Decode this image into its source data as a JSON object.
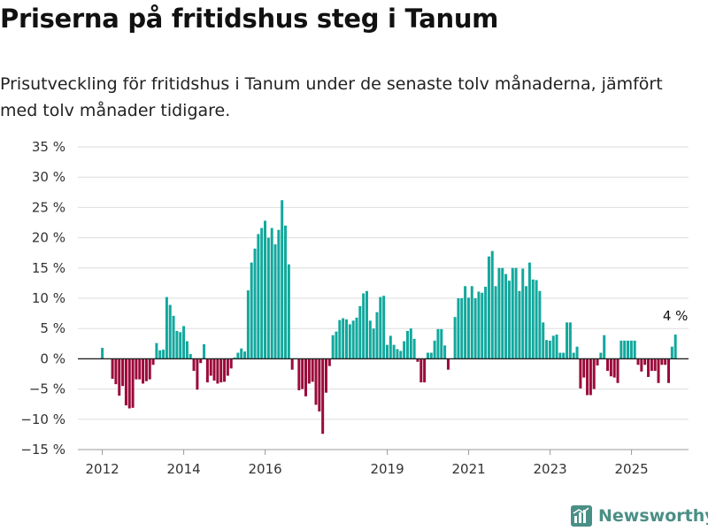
{
  "title": "Priserna på fritidshus steg i Tanum",
  "subtitle": "Prisutveckling för fritidshus i Tanum under de senaste tolv månaderna, jämfört med tolv månader tidigare.",
  "brand": {
    "name": "Newsworthy",
    "color": "#4a8f86",
    "icon": "bar-chart-logo-icon"
  },
  "colors": {
    "positive": "#12a89d",
    "negative": "#9b0a3a",
    "grid": "#dddddd",
    "zero_line": "#222222"
  },
  "chart_data": {
    "type": "bar",
    "title": "Priserna på fritidshus steg i Tanum",
    "ylim": [
      -15,
      35
    ],
    "yticks": [
      -15,
      -10,
      -5,
      0,
      5,
      10,
      15,
      20,
      25,
      30,
      35
    ],
    "ytick_labels": [
      "−15 %",
      "−10 %",
      "−5 %",
      "0 %",
      "5 %",
      "10 %",
      "15 %",
      "20 %",
      "25 %",
      "30 %",
      "35 %"
    ],
    "x_start": 2012.0,
    "x_step": 0.0833,
    "xlim": [
      2011.4,
      2026.4
    ],
    "xticks": [
      2012,
      2014,
      2016,
      2019,
      2021,
      2023,
      2025
    ],
    "xtick_labels": [
      "2012",
      "2014",
      "2016",
      "2019",
      "2021",
      "2023",
      "2025"
    ],
    "grid": "horizontal",
    "annotation": {
      "text": "4 %",
      "value": 4
    },
    "values": [
      1.8,
      0,
      0,
      -3.3,
      -4.2,
      -6.1,
      -4.5,
      -7.7,
      -8.2,
      -8.1,
      -3.4,
      -3.4,
      -4.1,
      -3.7,
      -3.4,
      -1.0,
      2.6,
      1.4,
      1.5,
      10.2,
      8.9,
      7.1,
      4.6,
      4.4,
      5.4,
      2.9,
      0.8,
      -2.0,
      -5.1,
      -0.7,
      2.4,
      -3.9,
      -2.8,
      -3.6,
      -4.1,
      -3.9,
      -3.8,
      -2.8,
      -1.6,
      0.2,
      1.0,
      1.7,
      1.2,
      11.3,
      15.9,
      18.2,
      20.6,
      21.6,
      22.8,
      20.0,
      21.6,
      18.9,
      21.3,
      26.2,
      22.0,
      15.6,
      -1.8,
      0,
      -5.2,
      -5.0,
      -6.2,
      -4.1,
      -3.8,
      -7.6,
      -8.7,
      -12.4,
      -5.6,
      -1.2,
      3.9,
      4.5,
      6.4,
      6.7,
      6.5,
      5.7,
      6.3,
      6.8,
      8.7,
      10.8,
      11.2,
      6.3,
      5.0,
      7.7,
      10.2,
      10.4,
      2.3,
      3.8,
      2.3,
      1.6,
      1.3,
      2.9,
      4.6,
      5.0,
      3.3,
      -0.5,
      -3.9,
      -3.9,
      1.0,
      1.0,
      3.0,
      4.9,
      4.9,
      2.2,
      -1.8,
      0,
      6.9,
      10.0,
      10.0,
      12.0,
      10.1,
      12.0,
      10.0,
      11.1,
      10.9,
      11.9,
      16.9,
      17.8,
      12.0,
      15.0,
      15.0,
      14.0,
      12.9,
      15.0,
      15.0,
      11.2,
      14.9,
      12.0,
      15.9,
      13.1,
      13.0,
      11.2,
      6.0,
      3.1,
      3.0,
      3.8,
      4.0,
      1.0,
      1.0,
      6.0,
      6.0,
      1.0,
      2.0,
      -4.9,
      -3.1,
      -6.0,
      -6.0,
      -5.0,
      -1.1,
      1.0,
      3.9,
      -2.0,
      -2.9,
      -3.1,
      -4.0,
      3.0,
      3.0,
      3.0,
      3.0,
      3.0,
      -1.0,
      -2.1,
      -1.0,
      -3.0,
      -2.0,
      -2.0,
      -4.0,
      -1.0,
      -1.0,
      -4.0,
      2.0,
      4.0
    ]
  }
}
